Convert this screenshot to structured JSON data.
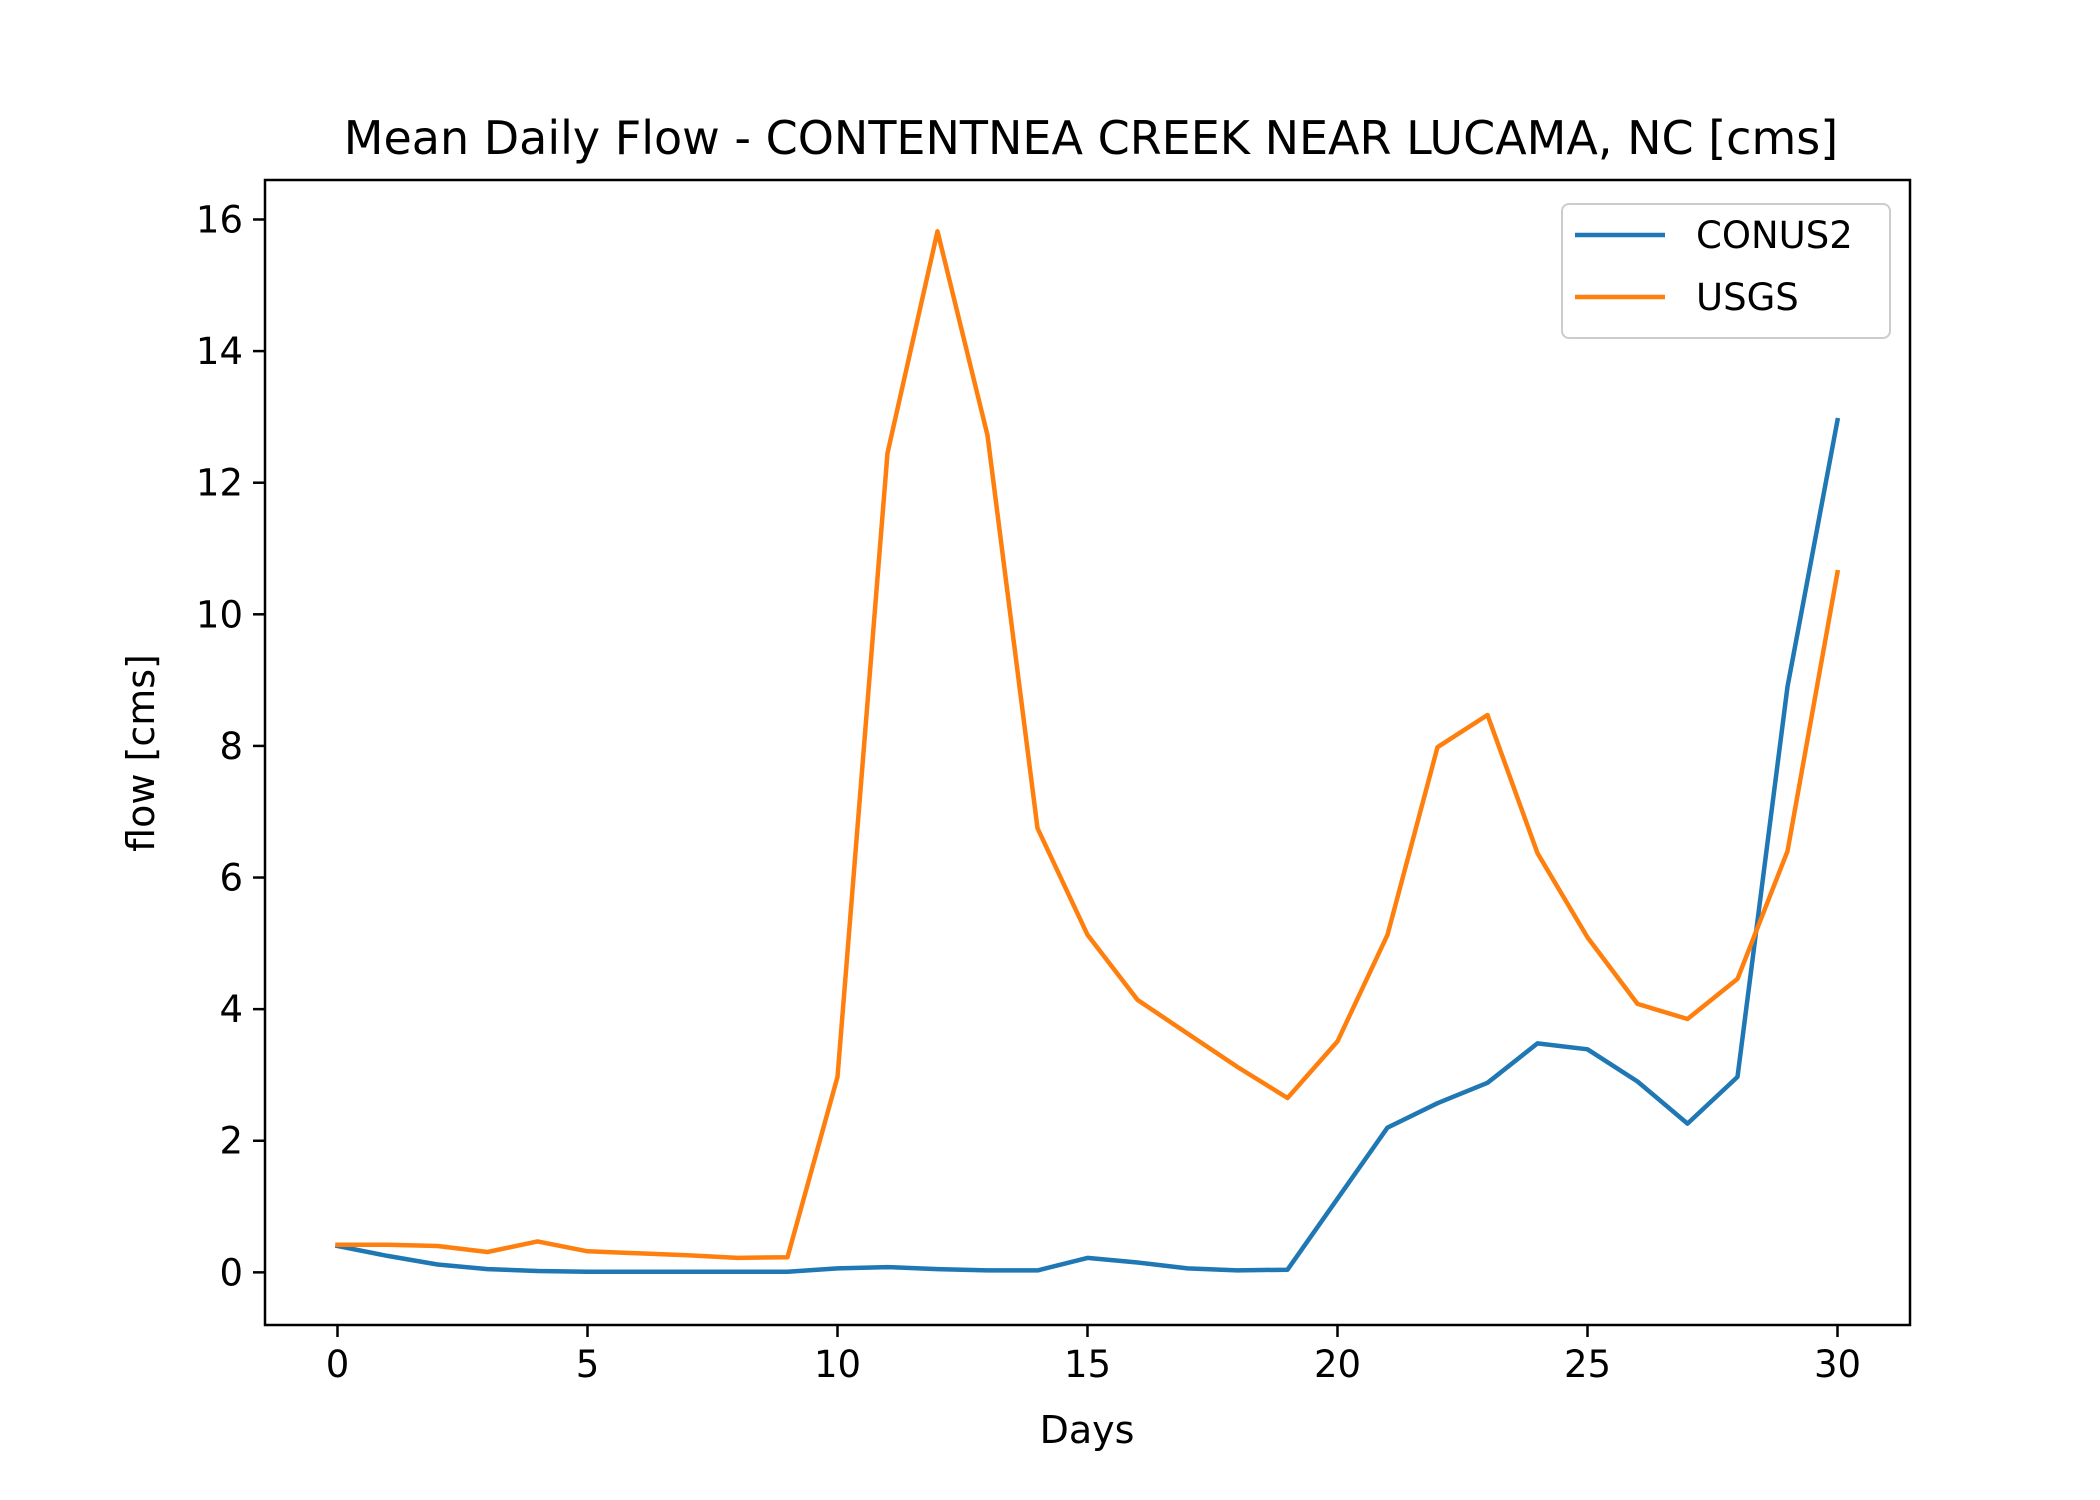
{
  "chart_data": {
    "type": "line",
    "title": "Mean Daily Flow - CONTENTNEA CREEK NEAR LUCAMA, NC [cms]",
    "xlabel": "Days",
    "ylabel": "flow [cms]",
    "xlim": [
      -1.45,
      31.45
    ],
    "ylim": [
      -0.8,
      16.6
    ],
    "xticks": [
      0,
      5,
      10,
      15,
      20,
      25,
      30
    ],
    "yticks": [
      0,
      2,
      4,
      6,
      8,
      10,
      12,
      14,
      16
    ],
    "grid": false,
    "legend": "top-right",
    "x": [
      0,
      1,
      2,
      3,
      4,
      5,
      6,
      7,
      8,
      9,
      10,
      11,
      12,
      13,
      14,
      15,
      16,
      17,
      18,
      19,
      20,
      21,
      22,
      23,
      24,
      25,
      26,
      27,
      28,
      29,
      30
    ],
    "series": [
      {
        "name": "CONUS2",
        "color": "#1f77b4",
        "values": [
          0.4,
          0.25,
          0.12,
          0.05,
          0.02,
          0.01,
          0.01,
          0.01,
          0.01,
          0.01,
          0.06,
          0.08,
          0.05,
          0.03,
          0.03,
          0.22,
          0.15,
          0.06,
          0.03,
          0.04,
          1.12,
          2.2,
          2.57,
          2.88,
          3.48,
          3.39,
          2.9,
          2.26,
          2.97,
          8.9,
          12.95
        ]
      },
      {
        "name": "USGS",
        "color": "#ff7f0e",
        "values": [
          0.42,
          0.42,
          0.4,
          0.31,
          0.47,
          0.32,
          0.29,
          0.26,
          0.22,
          0.23,
          2.97,
          12.45,
          15.82,
          12.72,
          6.75,
          5.13,
          4.14,
          3.63,
          3.12,
          2.65,
          3.51,
          5.13,
          7.98,
          8.47,
          6.37,
          5.09,
          4.08,
          3.85,
          4.46,
          6.4,
          10.64
        ]
      }
    ]
  }
}
